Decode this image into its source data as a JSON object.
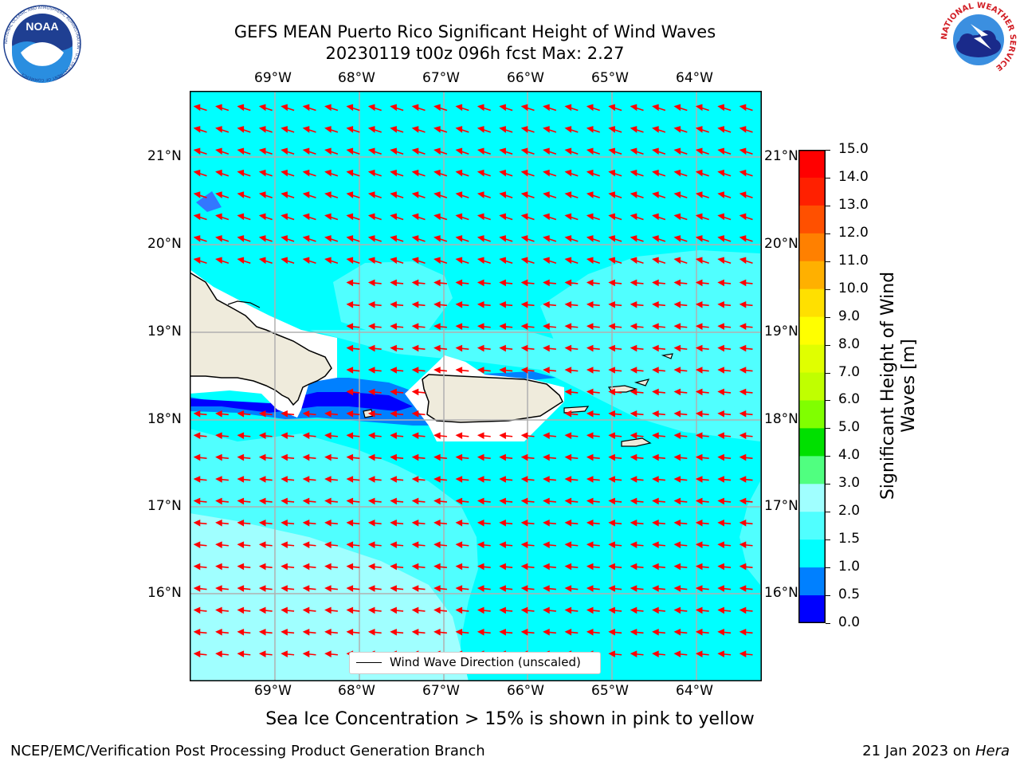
{
  "header": {
    "title": "GEFS MEAN Puerto Rico Significant Height of Wind Waves",
    "subtitle": "20230119 t00z 096h fcst   Max: 2.27"
  },
  "map": {
    "lon_labels": [
      "69°W",
      "68°W",
      "67°W",
      "66°W",
      "65°W",
      "64°W"
    ],
    "lat_labels": [
      "21°N",
      "20°N",
      "19°N",
      "18°N",
      "17°N",
      "16°N"
    ],
    "land_color": "#efebdc",
    "ocean_color": "#00ffff",
    "vector_color": "#ff0000",
    "legend_text": "Wind Wave Direction (unscaled)"
  },
  "colorbar": {
    "label": "Significant Height of Wind Waves [m]",
    "ticks": [
      "15.0",
      "14.0",
      "13.0",
      "12.0",
      "11.0",
      "10.0",
      "9.0",
      "8.0",
      "7.0",
      "6.0",
      "5.0",
      "4.0",
      "3.0",
      "2.0",
      "1.5",
      "1.0",
      "0.5",
      "0.0"
    ],
    "colors": [
      "#ff0000",
      "#ff2000",
      "#ff5000",
      "#ff8000",
      "#ffb000",
      "#ffe000",
      "#ffff00",
      "#e0ff00",
      "#c0ff00",
      "#80ff00",
      "#00e000",
      "#50ff80",
      "#a0ffff",
      "#50ffff",
      "#00ffff",
      "#0080ff",
      "#0000ff"
    ]
  },
  "note": "Sea Ice Concentration > 15% is shown in pink to yellow",
  "footer": {
    "left": "NCEP/EMC/Verification Post Processing Product Generation Branch",
    "date": "21 Jan 2023 on",
    "machine": "Hera"
  },
  "logos": {
    "noaa_text": "NOAA",
    "noaa_ring": "NATIONAL OCEANIC AND ATMOSPHERIC ADMINISTRATION · U.S. DEPARTMENT OF COMMERCE",
    "nws_ring": "NATIONAL WEATHER SERVICE"
  }
}
